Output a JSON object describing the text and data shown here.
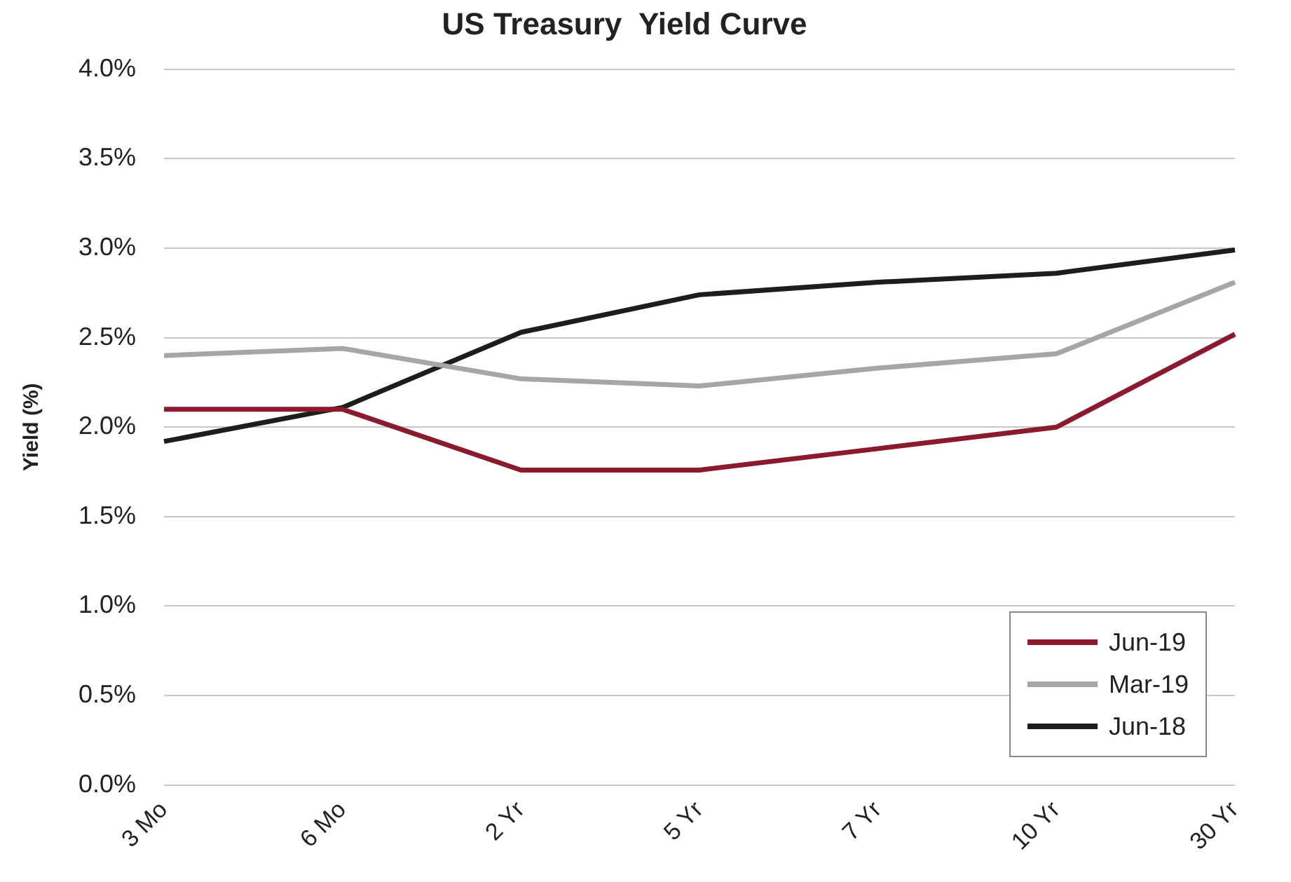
{
  "chart_data": {
    "type": "line",
    "title": "US Treasury  Yield Curve",
    "ylabel": "Yield (%)",
    "categories": [
      "3 Mo",
      "6 Mo",
      "2 Yr",
      "5 Yr",
      "7 Yr",
      "10 Yr",
      "30 Yr"
    ],
    "series": [
      {
        "name": "Jun-19",
        "color": "#8b1a2e",
        "values": [
          2.1,
          2.1,
          1.76,
          1.76,
          1.88,
          2.0,
          2.52
        ]
      },
      {
        "name": "Mar-19",
        "color": "#a6a6a6",
        "values": [
          2.4,
          2.44,
          2.27,
          2.23,
          2.33,
          2.41,
          2.81
        ]
      },
      {
        "name": "Jun-18",
        "color": "#1a1f1a",
        "values": [
          1.92,
          2.11,
          2.53,
          2.74,
          2.81,
          2.86,
          2.99
        ]
      }
    ],
    "ylim": [
      0,
      4
    ],
    "yticks": [
      {
        "value": 0,
        "label": "0.0%"
      },
      {
        "value": 0.5,
        "label": "0.5%"
      },
      {
        "value": 1,
        "label": "1.0%"
      },
      {
        "value": 1.5,
        "label": "1.5%"
      },
      {
        "value": 2,
        "label": "2.0%"
      },
      {
        "value": 2.5,
        "label": "2.5%"
      },
      {
        "value": 3,
        "label": "3.0%"
      },
      {
        "value": 3.5,
        "label": "3.5%"
      },
      {
        "value": 4,
        "label": "4.0%"
      }
    ],
    "grid": "y",
    "legend": "bottom right",
    "marker": "none",
    "line_style": "solid"
  }
}
